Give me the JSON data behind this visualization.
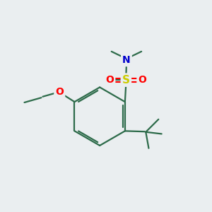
{
  "bg_color": "#eaeef0",
  "bond_color": "#2d6b4a",
  "bond_width": 1.6,
  "atom_colors": {
    "S": "#cccc00",
    "O": "#ff0000",
    "N": "#0000cc",
    "C": "#2d6b4a"
  },
  "figsize": [
    3.0,
    3.0
  ],
  "dpi": 100,
  "xlim": [
    0,
    10
  ],
  "ylim": [
    0,
    10
  ]
}
